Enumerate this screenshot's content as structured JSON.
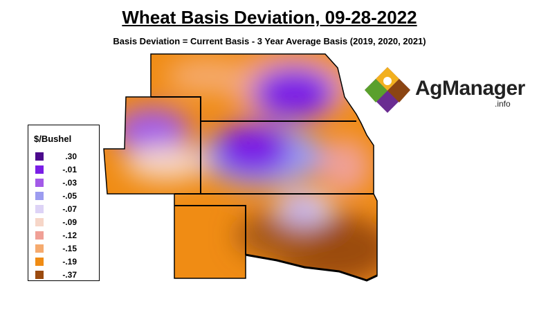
{
  "header": {
    "title": "Wheat Basis Deviation, 09-28-2022",
    "subtitle": "Basis Deviation = Current Basis - 3 Year Average Basis (2019, 2020, 2021)"
  },
  "legend": {
    "title": "$/Bushel",
    "items": [
      {
        "label": ".30",
        "color": "#4b0a8c"
      },
      {
        "label": "-.01",
        "color": "#7a1ee6"
      },
      {
        "label": "-.03",
        "color": "#a35ae8"
      },
      {
        "label": "-.05",
        "color": "#9c9cf0"
      },
      {
        "label": "-.07",
        "color": "#ddd3f6"
      },
      {
        "label": "-.09",
        "color": "#f6d6c8"
      },
      {
        "label": "-.12",
        "color": "#f0a096"
      },
      {
        "label": "-.15",
        "color": "#f5aa6e"
      },
      {
        "label": "-.19",
        "color": "#f08c14"
      },
      {
        "label": "-.37",
        "color": "#9b4b0f"
      }
    ]
  },
  "logo": {
    "name": "AgManager",
    "suffix": ".info"
  }
}
